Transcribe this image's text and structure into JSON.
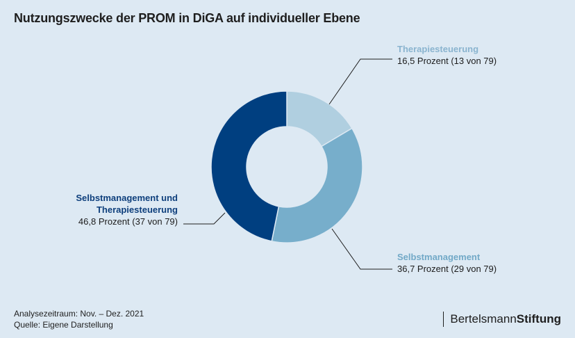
{
  "title": "Nutzungszwecke der PROM in DiGA auf individueller Ebene",
  "chart_data": {
    "type": "pie",
    "variant": "donut",
    "segments": [
      {
        "name": "Therapiesteuerung",
        "value": 16.5,
        "label": "16,5 Prozent (13 von 79)",
        "color": "#b0cfe0"
      },
      {
        "name": "Selbstmanagement",
        "value": 36.7,
        "label": "36,7 Prozent (29 von 79)",
        "color": "#77aecb"
      },
      {
        "name_lines": [
          "Selbstmanagement und",
          "Therapiesteuerung"
        ],
        "value": 46.8,
        "label": "46,8 Prozent (37 von 79)",
        "color": "#003f80"
      }
    ]
  },
  "footer": {
    "line1": "Analysezeitraum: Nov. – Dez. 2021",
    "line2": "Quelle: Eigene Darstellung"
  },
  "logo": {
    "part1": "Bertelsmann",
    "part2": "Stiftung"
  }
}
